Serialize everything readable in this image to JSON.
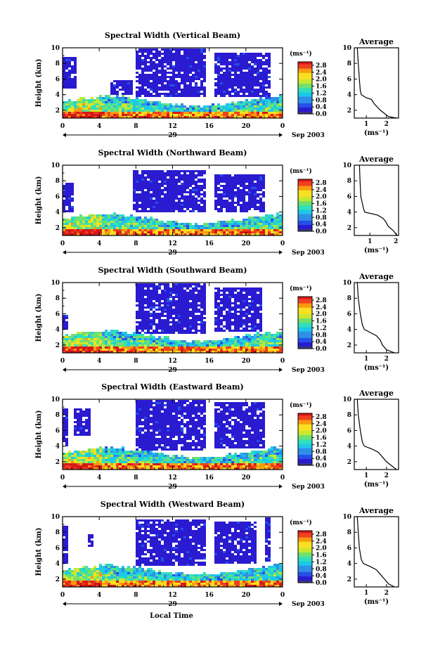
{
  "figure": {
    "xlabel": "Local Time",
    "date_label": "Sep 2003",
    "day_label": "29",
    "colorbar_unit": "(ms⁻¹)",
    "avg_title": "Average",
    "avg_xlabel": "(ms⁻¹)"
  },
  "colors": {
    "colormap": [
      "#3a3a78",
      "#2a1bd0",
      "#2450e8",
      "#2f8fe8",
      "#1cc8e8",
      "#30e0b8",
      "#6ee070",
      "#c8e830",
      "#f8e020",
      "#f89a10",
      "#f04020",
      "#d81818"
    ],
    "no_data": "#ffffff"
  },
  "chart_data": [
    {
      "type": "heatmap",
      "title": "Spectral Width (Vertical Beam)",
      "xlabel": "",
      "ylabel": "Height (km)",
      "x_ticks": [
        "0",
        "4",
        "8",
        "12",
        "16",
        "20",
        "0"
      ],
      "xlim": [
        0,
        24
      ],
      "y_ticks": [
        "2",
        "4",
        "6",
        "8",
        "10"
      ],
      "ylim": [
        1,
        10
      ],
      "colorbar_ticks": [
        "0.0",
        "0.4",
        "0.8",
        "1.2",
        "1.6",
        "2.0",
        "2.4",
        "2.8"
      ],
      "clim": [
        0,
        3
      ],
      "upper_echoes": [
        [
          0,
          1.5,
          5,
          9
        ],
        [
          5,
          7.5,
          4,
          6
        ],
        [
          7.7,
          15.5,
          3.8,
          10
        ],
        [
          16.5,
          22.5,
          3.8,
          9.5
        ]
      ],
      "avg": {
        "xticks": [
          "1",
          "2"
        ],
        "xlim": [
          0.4,
          2.6
        ],
        "profile": [
          [
            10,
            0.55
          ],
          [
            8,
            0.6
          ],
          [
            6,
            0.65
          ],
          [
            4.5,
            0.7
          ],
          [
            4,
            0.75
          ],
          [
            3.6,
            1.0
          ],
          [
            3.4,
            1.25
          ],
          [
            2.8,
            1.4
          ],
          [
            2,
            1.7
          ],
          [
            1.4,
            2.0
          ],
          [
            1.2,
            2.1
          ],
          [
            1,
            2.5
          ]
        ]
      }
    },
    {
      "type": "heatmap",
      "title": "Spectral Width (Northward Beam)",
      "xlabel": "",
      "ylabel": "Height (km)",
      "x_ticks": [
        "0",
        "4",
        "8",
        "12",
        "16",
        "20",
        "0"
      ],
      "xlim": [
        0,
        24
      ],
      "y_ticks": [
        "2",
        "4",
        "6",
        "8",
        "10"
      ],
      "ylim": [
        1,
        10
      ],
      "colorbar_ticks": [
        "0.0",
        "0.4",
        "0.8",
        "1.2",
        "1.6",
        "2.0",
        "2.4",
        "2.8"
      ],
      "clim": [
        0,
        3
      ],
      "upper_echoes": [
        [
          0,
          1.2,
          4,
          8
        ],
        [
          7.6,
          15.5,
          4,
          9.5
        ],
        [
          16.5,
          22,
          4,
          9
        ]
      ],
      "avg": {
        "xticks": [
          "1",
          "2"
        ],
        "xlim": [
          0.4,
          2.1
        ],
        "profile": [
          [
            10,
            0.6
          ],
          [
            8,
            0.62
          ],
          [
            6,
            0.65
          ],
          [
            4.5,
            0.75
          ],
          [
            4,
            0.8
          ],
          [
            3.6,
            1.3
          ],
          [
            3.2,
            1.5
          ],
          [
            2.8,
            1.6
          ],
          [
            2.2,
            1.7
          ],
          [
            1.6,
            1.9
          ],
          [
            1,
            2.05
          ]
        ]
      }
    },
    {
      "type": "heatmap",
      "title": "Spectral Width (Southward Beam)",
      "xlabel": "",
      "ylabel": "Height (km)",
      "x_ticks": [
        "0",
        "4",
        "8",
        "12",
        "16",
        "20",
        "0"
      ],
      "xlim": [
        0,
        24
      ],
      "y_ticks": [
        "2",
        "4",
        "6",
        "8",
        "10"
      ],
      "ylim": [
        1,
        10
      ],
      "colorbar_ticks": [
        "0.0",
        "0.4",
        "0.8",
        "1.2",
        "1.6",
        "2.0",
        "2.4",
        "2.8"
      ],
      "clim": [
        0,
        3
      ],
      "upper_echoes": [
        [
          0,
          0.6,
          4,
          6
        ],
        [
          7.7,
          15.5,
          3.6,
          10
        ],
        [
          16.5,
          21.5,
          3.8,
          9.5
        ]
      ],
      "avg": {
        "xticks": [
          "1",
          "2"
        ],
        "xlim": [
          0.4,
          2.6
        ],
        "profile": [
          [
            10,
            0.55
          ],
          [
            8,
            0.6
          ],
          [
            6,
            0.7
          ],
          [
            4.6,
            0.8
          ],
          [
            4,
            0.9
          ],
          [
            3.6,
            1.2
          ],
          [
            3.2,
            1.5
          ],
          [
            2.6,
            1.7
          ],
          [
            2,
            1.8
          ],
          [
            1.4,
            2.0
          ],
          [
            1,
            2.4
          ]
        ]
      }
    },
    {
      "type": "heatmap",
      "title": "Spectral Width (Eastward Beam)",
      "xlabel": "",
      "ylabel": "Height (km)",
      "x_ticks": [
        "0",
        "4",
        "8",
        "12",
        "16",
        "20",
        "0"
      ],
      "xlim": [
        0,
        24
      ],
      "y_ticks": [
        "2",
        "4",
        "6",
        "8",
        "10"
      ],
      "ylim": [
        1,
        10
      ],
      "colorbar_ticks": [
        "0.0",
        "0.4",
        "0.8",
        "1.2",
        "1.6",
        "2.0",
        "2.4",
        "2.8"
      ],
      "clim": [
        0,
        3
      ],
      "upper_echoes": [
        [
          0,
          0.5,
          4,
          9
        ],
        [
          1,
          3,
          5.5,
          9
        ],
        [
          7.7,
          15.5,
          3.6,
          10
        ],
        [
          16.5,
          22,
          3.8,
          9.8
        ]
      ],
      "avg": {
        "xticks": [
          "1",
          "2"
        ],
        "xlim": [
          0.4,
          2.6
        ],
        "profile": [
          [
            10,
            0.55
          ],
          [
            8,
            0.6
          ],
          [
            6,
            0.7
          ],
          [
            4.5,
            0.8
          ],
          [
            4,
            0.9
          ],
          [
            3.6,
            1.3
          ],
          [
            3.2,
            1.6
          ],
          [
            2.6,
            1.8
          ],
          [
            2,
            2.0
          ],
          [
            1.4,
            2.3
          ],
          [
            1,
            2.5
          ]
        ]
      }
    },
    {
      "type": "heatmap",
      "title": "Spectral Width (Westward Beam)",
      "xlabel": "Local Time",
      "ylabel": "Height (km)",
      "x_ticks": [
        "0",
        "4",
        "8",
        "12",
        "16",
        "20",
        "0"
      ],
      "xlim": [
        0,
        24
      ],
      "y_ticks": [
        "2",
        "4",
        "6",
        "8",
        "10"
      ],
      "ylim": [
        1,
        10
      ],
      "colorbar_ticks": [
        "0.0",
        "0.4",
        "0.8",
        "1.2",
        "1.6",
        "2.0",
        "2.4",
        "2.8"
      ],
      "clim": [
        0,
        3
      ],
      "upper_echoes": [
        [
          0,
          0.6,
          4,
          9
        ],
        [
          2.5,
          3.2,
          6,
          8
        ],
        [
          7.7,
          15.5,
          3.8,
          9.8
        ],
        [
          16.5,
          21,
          4,
          9.5
        ],
        [
          22,
          22.6,
          4.5,
          10
        ]
      ],
      "avg": {
        "xticks": [
          "1",
          "2"
        ],
        "xlim": [
          0.4,
          2.6
        ],
        "profile": [
          [
            10,
            0.55
          ],
          [
            8,
            0.6
          ],
          [
            6,
            0.65
          ],
          [
            4.5,
            0.75
          ],
          [
            4,
            0.85
          ],
          [
            3.6,
            1.2
          ],
          [
            3.2,
            1.5
          ],
          [
            2.6,
            1.7
          ],
          [
            2,
            1.9
          ],
          [
            1.4,
            2.1
          ],
          [
            1,
            2.4
          ]
        ]
      }
    }
  ]
}
